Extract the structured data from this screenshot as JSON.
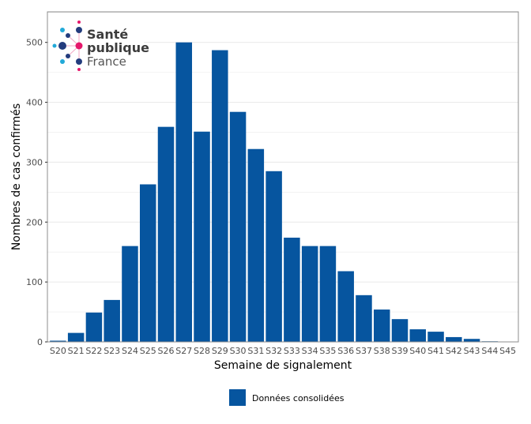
{
  "chart_data": {
    "type": "bar",
    "title": "",
    "xlabel": "Semaine de signalement",
    "ylabel": "Nombres de cas confirmés",
    "categories": [
      "S20",
      "S21",
      "S22",
      "S23",
      "S24",
      "S25",
      "S26",
      "S27",
      "S28",
      "S29",
      "S30",
      "S31",
      "S32",
      "S33",
      "S34",
      "S35",
      "S36",
      "S37",
      "S38",
      "S39",
      "S40",
      "S41",
      "S42",
      "S43",
      "S44",
      "S45"
    ],
    "series": [
      {
        "name": "Données consolidées",
        "color": "#06559f",
        "values": [
          2,
          15,
          49,
          70,
          160,
          263,
          359,
          500,
          351,
          487,
          384,
          322,
          285,
          174,
          160,
          160,
          118,
          78,
          54,
          38,
          21,
          17,
          8,
          5,
          1,
          0
        ]
      }
    ],
    "ylim": [
      0,
      551
    ],
    "yticks": [
      0,
      100,
      200,
      300,
      400,
      500
    ],
    "grid": true,
    "legend_position": "bottom"
  },
  "logo": {
    "line1": "Santé",
    "line2": "publique",
    "line3": "France"
  }
}
